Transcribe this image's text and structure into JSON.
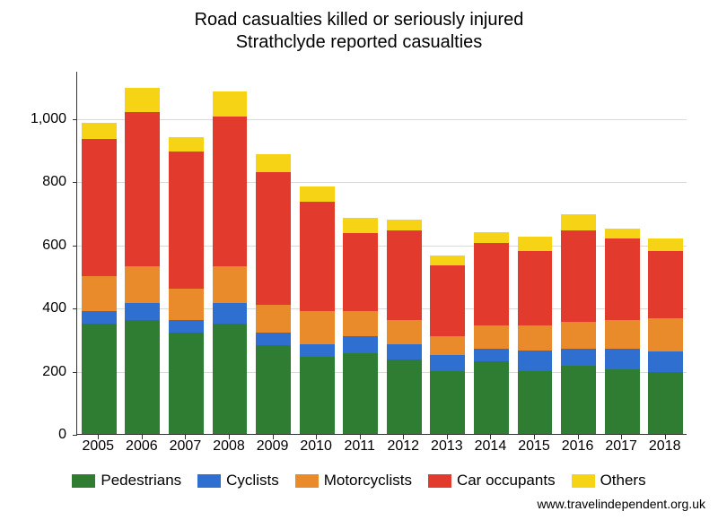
{
  "chart": {
    "type": "stacked-bar",
    "title_line1": "Road casualties killed or seriously injured",
    "title_line2": "Strathclyde reported casualties",
    "title_fontsize": 20,
    "axis_fontsize": 16,
    "legend_fontsize": 17,
    "credit_fontsize": 14,
    "credit": "www.travelindependent.org.uk",
    "background_color": "#ffffff",
    "grid_color": "#d9d9d9",
    "axis_color": "#333333",
    "text_color": "#000000",
    "ylim": [
      0,
      1150
    ],
    "yticks": [
      0,
      200,
      400,
      600,
      800,
      1000
    ],
    "bar_width": 0.8,
    "categories": [
      "2005",
      "2006",
      "2007",
      "2008",
      "2009",
      "2010",
      "2011",
      "2012",
      "2013",
      "2014",
      "2015",
      "2016",
      "2017",
      "2018"
    ],
    "series": [
      {
        "name": "Pedestrians",
        "color": "#2f7d32"
      },
      {
        "name": "Cyclists",
        "color": "#2f6fd0"
      },
      {
        "name": "Motorcyclists",
        "color": "#e98b2a"
      },
      {
        "name": "Car occupants",
        "color": "#e23b2e"
      },
      {
        "name": "Others",
        "color": "#f7d316"
      }
    ],
    "data": [
      [
        350,
        40,
        110,
        435,
        50
      ],
      [
        360,
        55,
        115,
        490,
        75
      ],
      [
        320,
        40,
        100,
        435,
        45
      ],
      [
        350,
        65,
        115,
        475,
        80
      ],
      [
        280,
        40,
        90,
        420,
        55
      ],
      [
        245,
        40,
        105,
        345,
        50
      ],
      [
        255,
        55,
        80,
        245,
        50
      ],
      [
        235,
        50,
        75,
        285,
        35
      ],
      [
        200,
        50,
        60,
        225,
        30
      ],
      [
        230,
        40,
        75,
        260,
        35
      ],
      [
        200,
        65,
        80,
        235,
        45
      ],
      [
        215,
        55,
        85,
        290,
        50
      ],
      [
        205,
        65,
        90,
        260,
        30
      ],
      [
        195,
        65,
        105,
        215,
        40
      ]
    ]
  }
}
